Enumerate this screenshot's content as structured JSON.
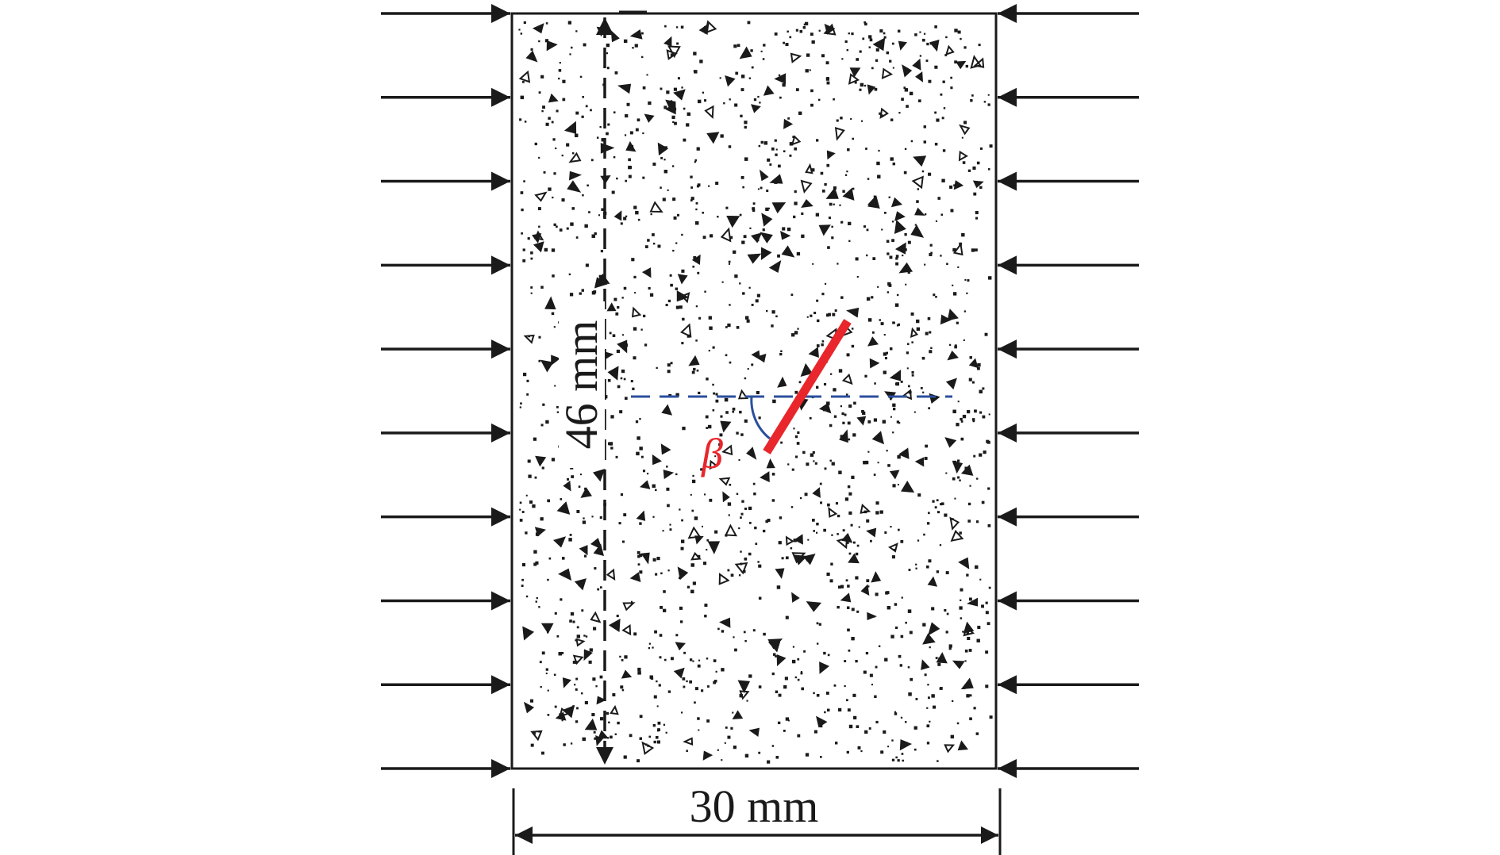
{
  "labels": {
    "height_dimension": "46 mm",
    "width_dimension": "30 mm",
    "angle_symbol": "β"
  },
  "colors": {
    "outline": "#1a1a1a",
    "flaw": "#e8262b",
    "reference_line": "#2b4f9e",
    "angle_label": "#e8262b"
  },
  "loads": {
    "arrows_per_side": 10
  }
}
